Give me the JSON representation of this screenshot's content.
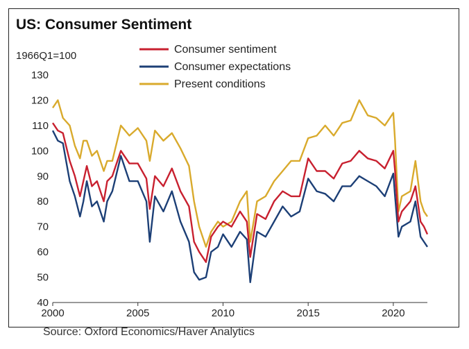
{
  "chart_data": {
    "type": "line",
    "title": "US: Consumer Sentiment",
    "unit_label": "1966Q1=100",
    "source": "Source: Oxford Economics/Haver Analytics",
    "xlim": [
      2000,
      2022
    ],
    "ylim": [
      40,
      130
    ],
    "x_ticks": [
      "2000",
      "2005",
      "2010",
      "2015",
      "2020"
    ],
    "y_ticks": [
      "40",
      "50",
      "60",
      "70",
      "80",
      "90",
      "100",
      "110",
      "120",
      "130"
    ],
    "legend_position": "top-center",
    "grid": false,
    "series": [
      {
        "name": "Consumer sentiment",
        "color": "#c8202f",
        "x": [
          2000.0,
          2000.3,
          2000.6,
          2001.0,
          2001.3,
          2001.6,
          2001.8,
          2002.0,
          2002.3,
          2002.6,
          2003.0,
          2003.2,
          2003.5,
          2004.0,
          2004.5,
          2005.0,
          2005.5,
          2005.7,
          2006.0,
          2006.5,
          2007.0,
          2007.5,
          2008.0,
          2008.3,
          2008.6,
          2009.0,
          2009.3,
          2009.7,
          2010.0,
          2010.5,
          2011.0,
          2011.4,
          2011.6,
          2012.0,
          2012.5,
          2013.0,
          2013.5,
          2014.0,
          2014.5,
          2015.0,
          2015.5,
          2016.0,
          2016.5,
          2017.0,
          2017.5,
          2018.0,
          2018.5,
          2019.0,
          2019.5,
          2020.0,
          2020.1,
          2020.3,
          2020.5,
          2021.0,
          2021.3,
          2021.6,
          2021.8,
          2022.0
        ],
        "values": [
          111,
          108,
          107,
          96,
          90,
          82,
          88,
          94,
          86,
          88,
          80,
          88,
          90,
          100,
          95,
          95,
          89,
          77,
          90,
          86,
          93,
          84,
          78,
          64,
          60,
          56,
          66,
          70,
          72,
          70,
          76,
          72,
          58,
          75,
          73,
          80,
          84,
          82,
          82,
          97,
          92,
          92,
          89,
          95,
          96,
          100,
          97,
          96,
          93,
          100,
          92,
          72,
          76,
          80,
          86,
          72,
          70,
          67
        ]
      },
      {
        "name": "Consumer expectations",
        "color": "#1c3f76",
        "x": [
          2000.0,
          2000.3,
          2000.6,
          2001.0,
          2001.3,
          2001.6,
          2001.8,
          2002.0,
          2002.3,
          2002.6,
          2003.0,
          2003.2,
          2003.5,
          2004.0,
          2004.5,
          2005.0,
          2005.5,
          2005.7,
          2006.0,
          2006.5,
          2007.0,
          2007.5,
          2008.0,
          2008.3,
          2008.6,
          2009.0,
          2009.3,
          2009.7,
          2010.0,
          2010.5,
          2011.0,
          2011.4,
          2011.6,
          2012.0,
          2012.5,
          2013.0,
          2013.5,
          2014.0,
          2014.5,
          2015.0,
          2015.5,
          2016.0,
          2016.5,
          2017.0,
          2017.5,
          2018.0,
          2018.5,
          2019.0,
          2019.5,
          2020.0,
          2020.1,
          2020.3,
          2020.5,
          2021.0,
          2021.3,
          2021.6,
          2021.8,
          2022.0
        ],
        "values": [
          108,
          104,
          103,
          88,
          82,
          74,
          80,
          88,
          78,
          80,
          72,
          80,
          84,
          98,
          88,
          88,
          80,
          64,
          82,
          76,
          84,
          72,
          64,
          52,
          49,
          50,
          60,
          62,
          67,
          62,
          68,
          65,
          48,
          68,
          66,
          72,
          78,
          74,
          76,
          89,
          84,
          83,
          80,
          86,
          86,
          90,
          88,
          86,
          82,
          91,
          82,
          66,
          70,
          72,
          80,
          66,
          64,
          62
        ]
      },
      {
        "name": "Present conditions",
        "color": "#d9aa2c",
        "x": [
          2000.0,
          2000.3,
          2000.6,
          2001.0,
          2001.3,
          2001.6,
          2001.8,
          2002.0,
          2002.3,
          2002.6,
          2003.0,
          2003.2,
          2003.5,
          2004.0,
          2004.5,
          2005.0,
          2005.5,
          2005.7,
          2006.0,
          2006.5,
          2007.0,
          2007.5,
          2008.0,
          2008.3,
          2008.6,
          2009.0,
          2009.3,
          2009.7,
          2010.0,
          2010.5,
          2011.0,
          2011.4,
          2011.6,
          2012.0,
          2012.5,
          2013.0,
          2013.5,
          2014.0,
          2014.5,
          2015.0,
          2015.5,
          2016.0,
          2016.5,
          2017.0,
          2017.5,
          2018.0,
          2018.5,
          2019.0,
          2019.5,
          2020.0,
          2020.1,
          2020.3,
          2020.5,
          2021.0,
          2021.3,
          2021.6,
          2021.8,
          2022.0
        ],
        "values": [
          117,
          120,
          113,
          110,
          102,
          97,
          104,
          104,
          98,
          100,
          92,
          96,
          96,
          110,
          106,
          109,
          104,
          96,
          108,
          104,
          107,
          101,
          94,
          80,
          70,
          62,
          68,
          72,
          70,
          72,
          80,
          84,
          64,
          80,
          82,
          88,
          92,
          96,
          96,
          105,
          106,
          110,
          106,
          111,
          112,
          120,
          114,
          113,
          110,
          115,
          104,
          76,
          82,
          84,
          96,
          80,
          76,
          74
        ]
      }
    ]
  }
}
